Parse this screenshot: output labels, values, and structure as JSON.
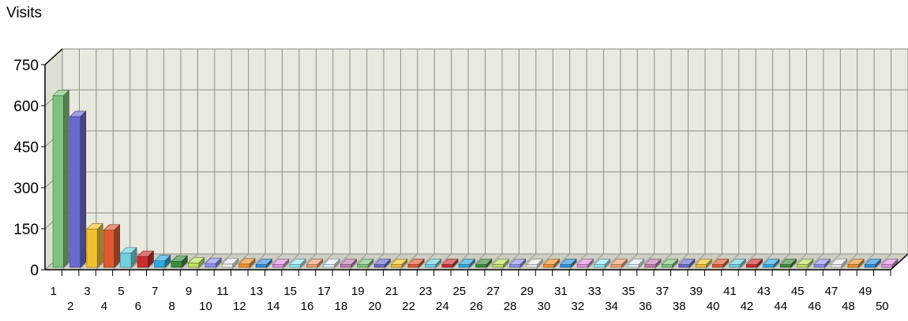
{
  "chart_data": {
    "type": "bar",
    "title": "",
    "xlabel": "",
    "ylabel": "Visits",
    "ylim": [
      0,
      750
    ],
    "yticks": [
      0,
      150,
      300,
      450,
      600,
      750
    ],
    "grid": true,
    "legend": "none",
    "categories": [
      "1",
      "2",
      "3",
      "4",
      "5",
      "6",
      "7",
      "8",
      "9",
      "10",
      "11",
      "12",
      "13",
      "14",
      "15",
      "16",
      "17",
      "18",
      "19",
      "20",
      "21",
      "22",
      "23",
      "24",
      "25",
      "26",
      "27",
      "28",
      "29",
      "30",
      "31",
      "32",
      "33",
      "34",
      "35",
      "36",
      "37",
      "38",
      "39",
      "40",
      "41",
      "42",
      "43",
      "44",
      "45",
      "46",
      "47",
      "48",
      "49",
      "50"
    ],
    "values": [
      628,
      551,
      140,
      136,
      52,
      40,
      24,
      22,
      16,
      14,
      12,
      12,
      10,
      10,
      10,
      10,
      10,
      10,
      10,
      10,
      10,
      10,
      10,
      10,
      10,
      10,
      10,
      10,
      10,
      10,
      10,
      10,
      10,
      10,
      10,
      10,
      10,
      10,
      10,
      10,
      10,
      10,
      10,
      10,
      10,
      10,
      10,
      10,
      10,
      10
    ],
    "palette": [
      "#7cc47c",
      "#6a6ad0",
      "#f0c030",
      "#e05a30",
      "#70d0e0",
      "#c83030",
      "#30a8e0",
      "#3c8c3c",
      "#b8e060",
      "#9090f0",
      "#e8e8e8",
      "#f09030",
      "#3090e0",
      "#e090e0",
      "#90e8f0",
      "#f0a070",
      "#e0f0f8",
      "#c080b0"
    ]
  }
}
